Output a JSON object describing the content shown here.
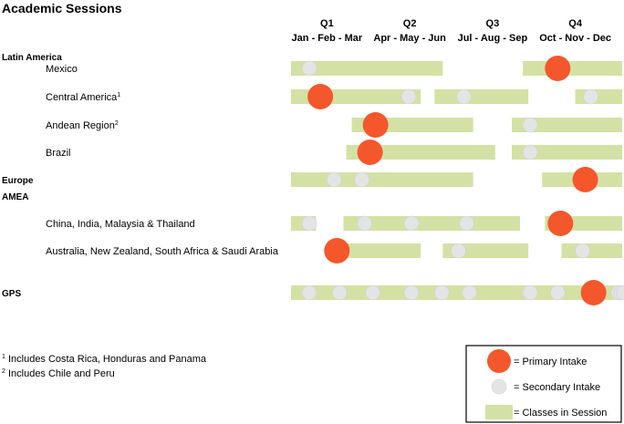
{
  "chart_data": {
    "type": "timeline",
    "title": "Academic Sessions",
    "quarters": [
      {
        "label": "Q1",
        "months": "Jan - Feb - Mar"
      },
      {
        "label": "Q2",
        "months": "Apr - May - Jun"
      },
      {
        "label": "Q3",
        "months": "Jul - Aug - Sep"
      },
      {
        "label": "Q4",
        "months": "Oct - Nov - Dec"
      }
    ],
    "x_range_months": [
      0,
      12
    ],
    "rows": [
      {
        "label": "Latin America",
        "group": true,
        "sup": ""
      },
      {
        "label": "Mexico",
        "group": false,
        "sup": "",
        "sessions": [
          [
            0.0,
            5.5
          ],
          [
            8.4,
            12.0
          ]
        ],
        "secondary": [
          0.4
        ],
        "primary": [
          9.2
        ]
      },
      {
        "label": "Central America",
        "group": false,
        "sup": "1",
        "sessions": [
          [
            0.0,
            4.7
          ],
          [
            5.2,
            8.6
          ],
          [
            10.3,
            12.0
          ]
        ],
        "secondary": [
          4.0,
          6.0,
          10.6
        ],
        "primary": [
          0.6
        ]
      },
      {
        "label": "Andean Region",
        "group": false,
        "sup": "2",
        "sessions": [
          [
            2.2,
            6.6
          ],
          [
            8.0,
            12.0
          ]
        ],
        "secondary": [
          8.4
        ],
        "primary": [
          2.6
        ]
      },
      {
        "label": "Brazil",
        "group": false,
        "sup": "",
        "sessions": [
          [
            2.0,
            7.4
          ],
          [
            8.0,
            12.0
          ]
        ],
        "secondary": [
          8.4
        ],
        "primary": [
          2.4
        ]
      },
      {
        "label": "Europe",
        "group": true,
        "sup": "",
        "sessions": [
          [
            0.0,
            6.6
          ],
          [
            9.1,
            12.0
          ]
        ],
        "secondary": [
          1.3,
          2.3
        ],
        "primary": [
          10.2
        ]
      },
      {
        "label": "AMEA",
        "group": true,
        "sup": ""
      },
      {
        "label": "China, India, Malaysia & Thailand",
        "group": false,
        "sup": "",
        "sessions": [
          [
            0.0,
            0.9
          ],
          [
            1.9,
            8.3
          ],
          [
            9.2,
            12.0
          ]
        ],
        "secondary": [
          0.4,
          2.4,
          4.1,
          6.1
        ],
        "primary": [
          9.3
        ]
      },
      {
        "label": "Australia, New Zealand, South Africa & Saudi Arabia",
        "group": false,
        "sup": "",
        "sessions": [
          [
            1.5,
            4.7
          ],
          [
            5.5,
            8.6
          ],
          [
            9.8,
            12.0
          ]
        ],
        "secondary": [
          5.8,
          10.3
        ],
        "primary": [
          1.2
        ]
      },
      {
        "label": "GPS",
        "group": true,
        "sup": "",
        "sessions": [
          [
            0.0,
            12.0
          ]
        ],
        "secondary": [
          0.4,
          1.5,
          2.7,
          4.1,
          5.2,
          6.2,
          8.4,
          9.4,
          11.6,
          11.7,
          11.8
        ],
        "primary": [
          10.5
        ]
      }
    ],
    "footnotes": [
      {
        "mark": "1",
        "text": "Includes Costa Rica, Honduras and Panama"
      },
      {
        "mark": "2",
        "text": "Includes Chile and Peru"
      }
    ],
    "legend": {
      "position": "bottom-right",
      "items": [
        {
          "kind": "primary",
          "label": "= Primary Intake"
        },
        {
          "kind": "secondary",
          "label": "= Secondary Intake"
        },
        {
          "kind": "session",
          "label": "= Classes in Session"
        }
      ]
    },
    "colors": {
      "primary": "#f4572b",
      "secondary": "#e4e4e4",
      "session": "#d4e1a4",
      "text": "#000000",
      "legend_border": "#000000"
    }
  }
}
